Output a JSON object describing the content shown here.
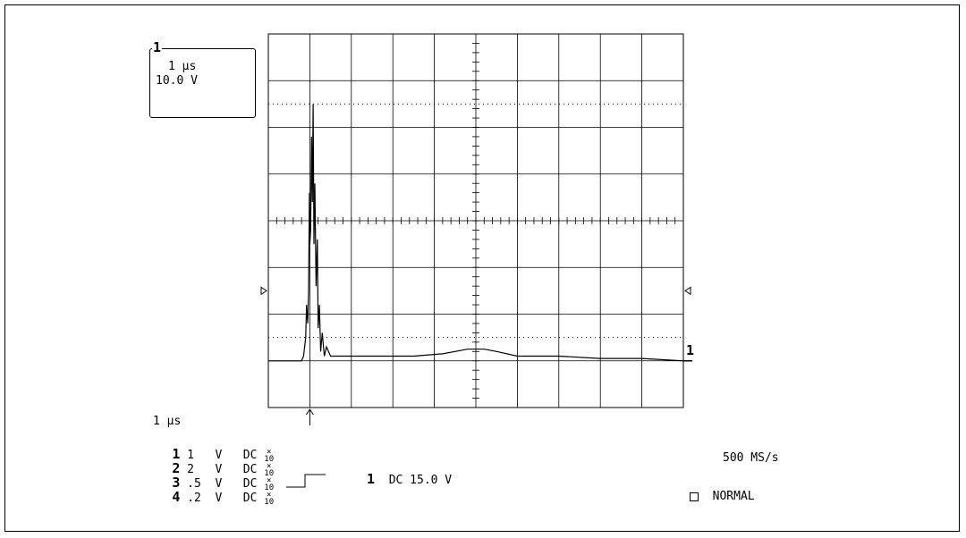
{
  "readout": {
    "channel": "1",
    "timebase": "1 µs",
    "volts": "10.0 V"
  },
  "bottom_timebase": "1 µs",
  "channels": [
    {
      "num": "1",
      "scale": "1",
      "unit": "V",
      "coupling": "DC",
      "probe_top": "×",
      "probe_bot": "10"
    },
    {
      "num": "2",
      "scale": "2",
      "unit": "V",
      "coupling": "DC",
      "probe_top": "×",
      "probe_bot": "10"
    },
    {
      "num": "3",
      "scale": ".5",
      "unit": "V",
      "coupling": "DC",
      "probe_top": "×",
      "probe_bot": "10"
    },
    {
      "num": "4",
      "scale": ".2",
      "unit": "V",
      "coupling": "DC",
      "probe_top": "×",
      "probe_bot": "10"
    }
  ],
  "trigger": {
    "channel": "1",
    "coupling_level": "DC 15.0 V",
    "mode": "NORMAL"
  },
  "sample_rate": "500 MS/s",
  "trace_label": "1",
  "chart_data": {
    "type": "line",
    "title": "",
    "xlabel": "",
    "ylabel": "",
    "x_divisions": 10,
    "y_divisions": 8,
    "xlim": [
      0,
      10
    ],
    "ylim": [
      -4,
      4
    ],
    "grid": true,
    "series": [
      {
        "x": [
          0,
          0.4,
          0.8,
          0.85,
          0.9,
          0.92,
          0.95,
          0.97,
          0.99,
          1.0,
          1.02,
          1.04,
          1.06,
          1.08,
          1.1,
          1.12,
          1.15,
          1.18,
          1.2,
          1.23,
          1.26,
          1.3,
          1.35,
          1.4,
          1.5,
          1.7,
          2.0,
          2.5,
          3.0,
          3.5,
          4.2,
          4.5,
          4.8,
          5.2,
          5.5,
          6.0,
          7.0,
          8.0,
          9.0,
          10.0
        ],
        "y": [
          -3.0,
          -3.0,
          -3.0,
          -2.9,
          -2.5,
          -1.8,
          -2.2,
          -1.5,
          0.6,
          -0.5,
          -0.2,
          1.8,
          0.4,
          2.5,
          -0.5,
          0.8,
          -1.4,
          -0.4,
          -2.3,
          -1.8,
          -2.8,
          -2.4,
          -2.9,
          -2.7,
          -2.9,
          -2.9,
          -2.9,
          -2.9,
          -2.9,
          -2.9,
          -2.85,
          -2.8,
          -2.75,
          -2.75,
          -2.8,
          -2.9,
          -2.9,
          -2.95,
          -2.95,
          -3.0
        ]
      }
    ]
  }
}
